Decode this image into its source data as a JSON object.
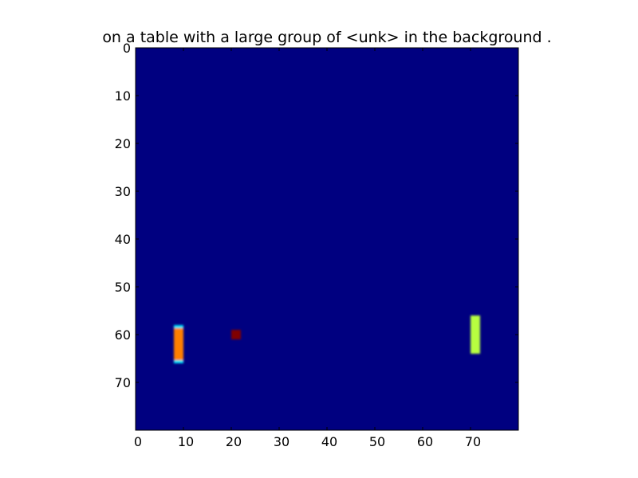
{
  "chart_data": {
    "type": "heatmap",
    "title": "on a table with a large group of <unk> in the background .",
    "xlabel": "",
    "ylabel": "",
    "colormap": "jet",
    "grid_size": [
      80,
      80
    ],
    "xlim": [
      0,
      80
    ],
    "ylim": [
      80,
      0
    ],
    "x_ticks": [
      0,
      10,
      20,
      30,
      40,
      50,
      60,
      70
    ],
    "y_ticks": [
      0,
      10,
      20,
      30,
      40,
      50,
      60,
      70
    ],
    "grid": false,
    "background_value": 0.0,
    "background_color": "#000080",
    "regions": [
      {
        "name": "vertical bar left",
        "x": [
          8,
          10
        ],
        "y": [
          58,
          66
        ],
        "value": 0.8,
        "color": "#ff7f00",
        "edge_color": "#00e5ff"
      },
      {
        "name": "small square",
        "x": [
          20,
          22
        ],
        "y": [
          59,
          61
        ],
        "value": 1.0,
        "color": "#800000"
      },
      {
        "name": "vertical bar right",
        "x": [
          70,
          72
        ],
        "y": [
          56,
          64
        ],
        "value": 0.65,
        "color": "#b7ff40"
      }
    ]
  }
}
